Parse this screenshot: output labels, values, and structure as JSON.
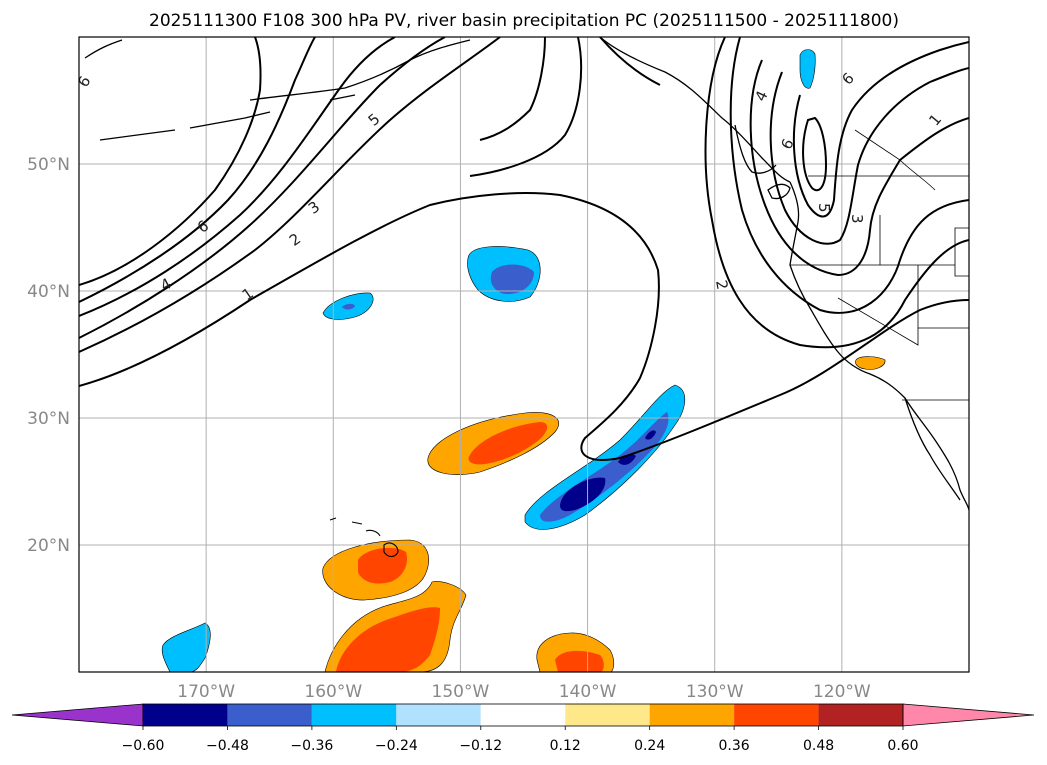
{
  "chart_data": {
    "type": "map",
    "title": "2025111300 F108 300 hPa PV, river basin precipitation PC (2025111500 - 2025111800)",
    "xlim": [
      -180,
      -110
    ],
    "ylim": [
      10,
      60
    ],
    "lon_ticks": [
      -170,
      -160,
      -150,
      -140,
      -130,
      -120
    ],
    "lon_tick_labels": [
      "170°W",
      "160°W",
      "150°W",
      "140°W",
      "130°W",
      "120°W"
    ],
    "lat_ticks": [
      20,
      30,
      40,
      50
    ],
    "lat_tick_labels": [
      "20°N",
      "30°N",
      "40°N",
      "50°N"
    ],
    "grid": true,
    "colorbar": {
      "orientation": "horizontal",
      "extend": "both",
      "levels": [
        -0.6,
        -0.48,
        -0.36,
        -0.24,
        -0.12,
        0.12,
        0.24,
        0.36,
        0.48,
        0.6
      ],
      "tick_labels": [
        "−0.60",
        "−0.48",
        "−0.36",
        "−0.24",
        "−0.12",
        "0.12",
        "0.24",
        "0.36",
        "0.48",
        "0.60"
      ],
      "colors": [
        "#9933cc",
        "#00008b",
        "#3a5fcd",
        "#00bfff",
        "#b0e2ff",
        "#ffffff",
        "#ffe88a",
        "#ffa500",
        "#ff4500",
        "#b22222",
        "#ff88aa"
      ]
    },
    "pv_contour_labels": [
      "1",
      "2",
      "3",
      "4",
      "5",
      "6"
    ],
    "precip_pc_anomalies": [
      {
        "name": "positive-subtropical-band",
        "sign": "+",
        "center": [
          -146,
          28
        ],
        "max_class": "0.36-0.48"
      },
      {
        "name": "negative-diagonal-band",
        "sign": "-",
        "center": [
          -138,
          26
        ],
        "max_class": "<-0.48"
      },
      {
        "name": "negative-central-pacific",
        "sign": "-",
        "center": [
          -146,
          41
        ],
        "max_class": "-0.48--0.36"
      },
      {
        "name": "negative-small-west",
        "sign": "-",
        "center": [
          -158,
          38.5
        ],
        "max_class": "-0.48--0.36"
      },
      {
        "name": "positive-near-hawaii",
        "sign": "+",
        "center": [
          -156,
          18.5
        ],
        "max_class": "0.36-0.48"
      },
      {
        "name": "positive-southwest",
        "sign": "+",
        "center": [
          -155,
          13
        ],
        "max_class": "0.36-0.48"
      },
      {
        "name": "positive-south-central",
        "sign": "+",
        "center": [
          -139,
          11.5
        ],
        "max_class": "0.36-0.48"
      },
      {
        "name": "negative-far-southwest",
        "sign": "-",
        "center": [
          -171,
          11.5
        ],
        "max_class": "-0.36--0.24"
      },
      {
        "name": "positive-southern-california",
        "sign": "+",
        "center": [
          -116,
          34.5
        ],
        "max_class": "0.24-0.36"
      },
      {
        "name": "negative-british-columbia",
        "sign": "-",
        "center": [
          -122.5,
          57
        ],
        "max_class": "-0.36--0.24"
      }
    ]
  }
}
